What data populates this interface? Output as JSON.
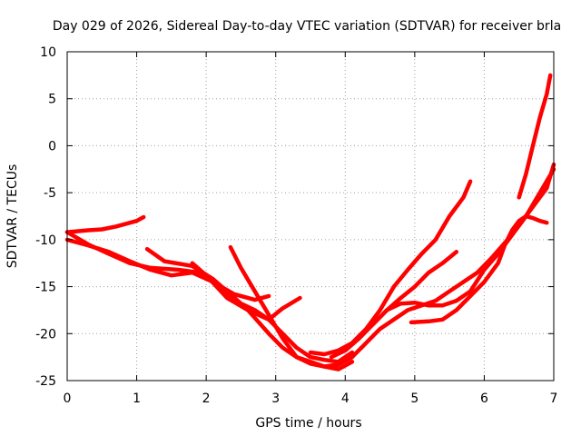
{
  "chart_data": {
    "type": "scatter",
    "title": "Day 029 of 2026, Sidereal Day-to-day VTEC variation (SDTVAR) for receiver brla",
    "xlabel": "GPS time / hours",
    "ylabel": "SDTVAR / TECUs",
    "xlim": [
      0,
      7
    ],
    "ylim": [
      -25,
      10
    ],
    "xticks": [
      0,
      1,
      2,
      3,
      4,
      5,
      6,
      7
    ],
    "yticks": [
      10,
      5,
      0,
      -5,
      -10,
      -15,
      -20,
      -25
    ],
    "grid": true,
    "marker": "plus",
    "color": "#ff0000",
    "series": [
      {
        "x": [
          0,
          0.3,
          0.5,
          0.7,
          0.85,
          1.0,
          1.1
        ],
        "y": [
          -9.2,
          -9.0,
          -8.9,
          -8.6,
          -8.3,
          -8.0,
          -7.6
        ]
      },
      {
        "x": [
          0,
          0.3,
          0.6,
          0.9,
          1.2,
          1.6,
          1.9,
          2.1,
          2.4,
          2.7,
          2.9
        ],
        "y": [
          -9.2,
          -10.5,
          -11.5,
          -12.5,
          -13.0,
          -13.2,
          -13.5,
          -14.5,
          -15.8,
          -16.4,
          -16.0
        ]
      },
      {
        "x": [
          0,
          0.3,
          0.6,
          0.9,
          1.2,
          1.5,
          1.8,
          2.1,
          2.3,
          2.6,
          2.9,
          3.1,
          3.35
        ],
        "y": [
          -10.0,
          -10.6,
          -11.3,
          -12.3,
          -13.2,
          -13.8,
          -13.5,
          -14.5,
          -16.0,
          -17.5,
          -18.5,
          -17.3,
          -16.2
        ]
      },
      {
        "x": [
          1.15,
          1.4,
          1.8,
          2.1,
          2.3,
          2.5,
          2.7,
          2.9,
          3.1,
          3.3,
          3.5,
          3.7,
          3.9,
          4.1
        ],
        "y": [
          -11.0,
          -12.3,
          -12.8,
          -14.2,
          -15.5,
          -16.8,
          -17.5,
          -18.5,
          -20.0,
          -21.5,
          -22.5,
          -22.8,
          -23.0,
          -22.0
        ]
      },
      {
        "x": [
          1.8,
          2.0,
          2.3,
          2.6,
          2.9,
          3.1,
          3.3,
          3.5,
          3.7,
          3.9,
          4.1
        ],
        "y": [
          -12.5,
          -13.8,
          -16.2,
          -17.5,
          -20.0,
          -21.5,
          -22.5,
          -23.0,
          -23.5,
          -23.8,
          -23.0
        ]
      },
      {
        "x": [
          2.35,
          2.5,
          2.7,
          2.9,
          3.1,
          3.3,
          3.5,
          3.7,
          3.9,
          4.1
        ],
        "y": [
          -10.8,
          -13.0,
          -15.5,
          -18.0,
          -20.5,
          -22.5,
          -23.2,
          -23.5,
          -23.3,
          -22.5
        ]
      },
      {
        "x": [
          3.5,
          3.7,
          3.9,
          4.1,
          4.3,
          4.5,
          4.7,
          4.9,
          5.1,
          5.3,
          5.5,
          5.7,
          5.8
        ],
        "y": [
          -22.0,
          -22.2,
          -21.8,
          -21.0,
          -19.5,
          -17.5,
          -15.0,
          -13.2,
          -11.5,
          -10.0,
          -7.5,
          -5.5,
          -3.8
        ]
      },
      {
        "x": [
          3.8,
          4.0,
          4.2,
          4.4,
          4.6,
          4.8,
          5.0,
          5.2,
          5.4,
          5.6
        ],
        "y": [
          -22.5,
          -21.8,
          -20.5,
          -19.0,
          -17.5,
          -16.2,
          -15.0,
          -13.5,
          -12.5,
          -11.3
        ]
      },
      {
        "x": [
          3.85,
          4.1,
          4.3,
          4.5,
          4.7,
          4.9,
          5.1,
          5.3,
          5.5,
          5.7,
          5.9,
          6.1,
          6.3,
          6.5,
          6.7,
          6.9,
          7.0
        ],
        "y": [
          -23.5,
          -22.5,
          -21.0,
          -19.5,
          -18.5,
          -17.5,
          -17.0,
          -16.5,
          -15.5,
          -14.5,
          -13.5,
          -12.0,
          -10.3,
          -8.5,
          -6.5,
          -4.5,
          -2.0
        ]
      },
      {
        "x": [
          4.4,
          4.6,
          4.8,
          5.0,
          5.2,
          5.4,
          5.6,
          5.8,
          6.0,
          6.2,
          6.4,
          6.6,
          6.8,
          7.0
        ],
        "y": [
          -19.0,
          -17.5,
          -16.8,
          -16.7,
          -17.0,
          -17.0,
          -16.5,
          -15.5,
          -13.2,
          -11.5,
          -9.5,
          -7.5,
          -5.0,
          -2.5
        ]
      },
      {
        "x": [
          4.95,
          5.2,
          5.4,
          5.6,
          5.8,
          6.0,
          6.2,
          6.3,
          6.4,
          6.5,
          6.6,
          6.7,
          6.8,
          6.9
        ],
        "y": [
          -18.8,
          -18.7,
          -18.5,
          -17.5,
          -16.0,
          -14.5,
          -12.5,
          -10.5,
          -9.0,
          -8.0,
          -7.5,
          -7.7,
          -8.0,
          -8.2
        ]
      },
      {
        "x": [
          6.5,
          6.6,
          6.7,
          6.8,
          6.9,
          6.95
        ],
        "y": [
          -5.5,
          -3.0,
          0.0,
          3.0,
          5.5,
          7.5
        ]
      }
    ]
  }
}
